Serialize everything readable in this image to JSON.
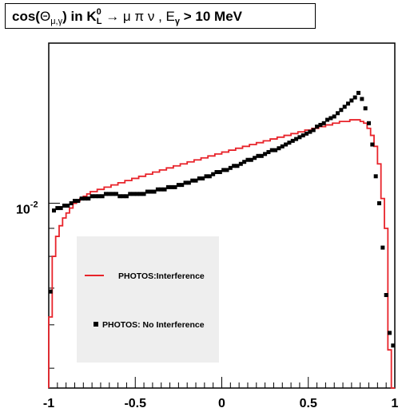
{
  "title": {
    "prefix": "cos(",
    "theta": "Θ",
    "theta_sub": "μ,γ",
    "mid": ") in K",
    "k_sup": "0",
    "k_sub": "L",
    "decay": " → μ π ν , E",
    "e_sub": "γ",
    "cut": " > 10 MeV"
  },
  "chart_data": {
    "type": "histogram",
    "xlim": [
      -1,
      1
    ],
    "yscale": "log",
    "ylim": [
      0.0046,
      0.0196
    ],
    "y_tick_labels": [
      {
        "value": 0.01,
        "base": "10",
        "exp": "-2"
      }
    ],
    "x_tick_labels": [
      "-1",
      "-0.5",
      "0",
      "0.5",
      "1"
    ],
    "x_ticks": [
      -1,
      -0.5,
      0,
      0.5,
      1
    ],
    "legend_placement": "center-left",
    "grid": false,
    "colors": {
      "interference": "#e8232a",
      "no_interference": "#000000"
    },
    "series": [
      {
        "name": "PHOTOS:Interference",
        "style": "red step line",
        "bin_edges": [
          -1,
          -0.98,
          -0.96,
          -0.94,
          -0.92,
          -0.9,
          -0.88,
          -0.86,
          -0.84,
          -0.82,
          -0.8,
          -0.78,
          -0.76,
          -0.74,
          -0.72,
          -0.7,
          -0.68,
          -0.66,
          -0.64,
          -0.62,
          -0.6,
          -0.58,
          -0.56,
          -0.54,
          -0.52,
          -0.5,
          -0.48,
          -0.46,
          -0.44,
          -0.42,
          -0.4,
          -0.38,
          -0.36,
          -0.34,
          -0.32,
          -0.3,
          -0.28,
          -0.26,
          -0.24,
          -0.22,
          -0.2,
          -0.18,
          -0.16,
          -0.14,
          -0.12,
          -0.1,
          -0.08,
          -0.06,
          -0.04,
          -0.02,
          0,
          0.02,
          0.04,
          0.06,
          0.08,
          0.1,
          0.12,
          0.14,
          0.16,
          0.18,
          0.2,
          0.22,
          0.24,
          0.26,
          0.28,
          0.3,
          0.32,
          0.34,
          0.36,
          0.38,
          0.4,
          0.42,
          0.44,
          0.46,
          0.48,
          0.5,
          0.52,
          0.54,
          0.56,
          0.58,
          0.6,
          0.62,
          0.64,
          0.66,
          0.68,
          0.7,
          0.72,
          0.74,
          0.76,
          0.78,
          0.8,
          0.82,
          0.84,
          0.86,
          0.88,
          0.9,
          0.92,
          0.94,
          0.96,
          0.98,
          1
        ],
        "values": [
          0.0062,
          0.008,
          0.0087,
          0.0091,
          0.0094,
          0.0096,
          0.0098,
          0.01,
          0.0101,
          0.0102,
          0.0103,
          0.0104,
          0.0105,
          0.0105,
          0.0106,
          0.0106,
          0.0107,
          0.0107,
          0.0108,
          0.0108,
          0.0109,
          0.0109,
          0.011,
          0.011,
          0.0111,
          0.0111,
          0.0112,
          0.0112,
          0.0113,
          0.0113,
          0.0114,
          0.0114,
          0.0115,
          0.0115,
          0.0116,
          0.0116,
          0.0117,
          0.0117,
          0.0118,
          0.0118,
          0.0119,
          0.0119,
          0.012,
          0.012,
          0.0121,
          0.0121,
          0.0122,
          0.0122,
          0.0123,
          0.0123,
          0.0124,
          0.0124,
          0.0125,
          0.0125,
          0.0126,
          0.0126,
          0.0127,
          0.0127,
          0.0128,
          0.0128,
          0.0129,
          0.0129,
          0.013,
          0.013,
          0.0131,
          0.0131,
          0.0132,
          0.0132,
          0.0133,
          0.0133,
          0.0134,
          0.0134,
          0.0135,
          0.0135,
          0.0136,
          0.0136,
          0.0137,
          0.0137,
          0.0138,
          0.0138,
          0.0139,
          0.0139,
          0.014,
          0.014,
          0.0141,
          0.0141,
          0.0141,
          0.0142,
          0.0142,
          0.0142,
          0.0141,
          0.014,
          0.0137,
          0.0133,
          0.0127,
          0.0118,
          0.0102,
          0.009,
          0.0054,
          0.0046
        ]
      },
      {
        "name": "PHOTOS: No Interference",
        "style": "black square markers",
        "x": [
          -0.99,
          -0.97,
          -0.95,
          -0.93,
          -0.91,
          -0.89,
          -0.87,
          -0.85,
          -0.83,
          -0.81,
          -0.79,
          -0.77,
          -0.75,
          -0.73,
          -0.71,
          -0.69,
          -0.67,
          -0.65,
          -0.63,
          -0.61,
          -0.59,
          -0.57,
          -0.55,
          -0.53,
          -0.51,
          -0.49,
          -0.47,
          -0.45,
          -0.43,
          -0.41,
          -0.39,
          -0.37,
          -0.35,
          -0.33,
          -0.31,
          -0.29,
          -0.27,
          -0.25,
          -0.23,
          -0.21,
          -0.19,
          -0.17,
          -0.15,
          -0.13,
          -0.11,
          -0.09,
          -0.07,
          -0.05,
          -0.03,
          -0.01,
          0.01,
          0.03,
          0.05,
          0.07,
          0.09,
          0.11,
          0.13,
          0.15,
          0.17,
          0.19,
          0.21,
          0.23,
          0.25,
          0.27,
          0.29,
          0.31,
          0.33,
          0.35,
          0.37,
          0.39,
          0.41,
          0.43,
          0.45,
          0.47,
          0.49,
          0.51,
          0.53,
          0.55,
          0.57,
          0.59,
          0.61,
          0.63,
          0.65,
          0.67,
          0.69,
          0.71,
          0.73,
          0.75,
          0.77,
          0.79,
          0.81,
          0.83,
          0.85,
          0.87,
          0.89,
          0.91,
          0.93,
          0.95,
          0.97,
          0.99
        ],
        "values": [
          0.0069,
          0.0097,
          0.0098,
          0.0098,
          0.0099,
          0.0099,
          0.01,
          0.0101,
          0.0101,
          0.0102,
          0.0102,
          0.0102,
          0.0103,
          0.0103,
          0.0103,
          0.0103,
          0.0104,
          0.0104,
          0.0104,
          0.0104,
          0.0103,
          0.0103,
          0.0103,
          0.0104,
          0.0104,
          0.0104,
          0.0104,
          0.0104,
          0.0105,
          0.0105,
          0.0105,
          0.0106,
          0.0106,
          0.0106,
          0.0107,
          0.0107,
          0.0107,
          0.0108,
          0.0108,
          0.0109,
          0.0109,
          0.011,
          0.011,
          0.0111,
          0.0111,
          0.0112,
          0.0112,
          0.0113,
          0.0114,
          0.0114,
          0.0115,
          0.0115,
          0.0116,
          0.0117,
          0.0117,
          0.0118,
          0.0119,
          0.012,
          0.012,
          0.0121,
          0.0122,
          0.0122,
          0.0123,
          0.0124,
          0.0125,
          0.0125,
          0.0126,
          0.0127,
          0.0128,
          0.0129,
          0.013,
          0.0131,
          0.0132,
          0.0133,
          0.0134,
          0.0135,
          0.0136,
          0.0138,
          0.0139,
          0.014,
          0.0142,
          0.0143,
          0.0144,
          0.0146,
          0.0148,
          0.015,
          0.0152,
          0.0154,
          0.0156,
          0.0159,
          0.0155,
          0.0149,
          0.014,
          0.0128,
          0.0112,
          0.01,
          0.0083,
          0.0068,
          0.0058,
          0.0055
        ]
      }
    ]
  }
}
